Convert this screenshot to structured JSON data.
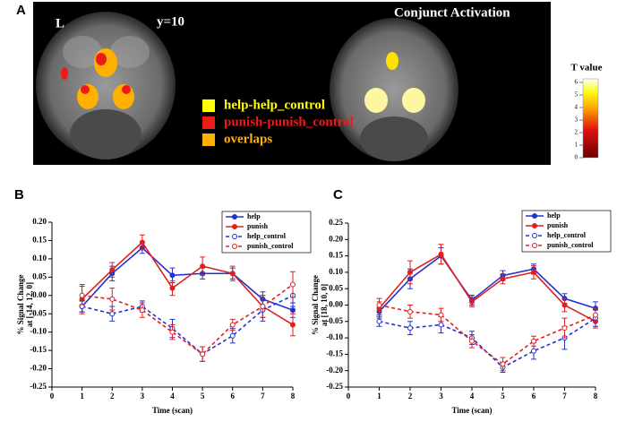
{
  "panel_a": {
    "label": "A",
    "hemisphere": "L",
    "slice": "y=10",
    "right_title": "Conjunct Activation",
    "legend": [
      {
        "label": "help-help_control",
        "color": "#ffff00"
      },
      {
        "label": "punish-punish_control",
        "color": "#ee1a1a"
      },
      {
        "label": "overlaps",
        "color": "#ffb000"
      }
    ],
    "colorbar": {
      "title": "T value",
      "ticks": [
        0,
        1,
        2,
        3,
        4,
        5,
        6
      ]
    }
  },
  "chart_data": [
    {
      "type": "line",
      "label": "B",
      "xlabel": "Time (scan)",
      "ylabel": [
        "% Signal Change",
        "at [-14, 12, 0]"
      ],
      "x": [
        1,
        2,
        3,
        4,
        5,
        6,
        7,
        8
      ],
      "xlim": [
        0,
        8
      ],
      "xticks": [
        0,
        1,
        2,
        3,
        4,
        5,
        6,
        7,
        8
      ],
      "ylim": [
        -0.25,
        0.2
      ],
      "yticks": [
        {
          "value": -0.25,
          "label": "-0.25"
        },
        {
          "value": -0.2,
          "label": "-0.20"
        },
        {
          "value": -0.15,
          "label": "-0.15"
        },
        {
          "value": -0.1,
          "label": "-0.10"
        },
        {
          "value": -0.05,
          "label": "-0.05"
        },
        {
          "value": 0,
          "label": "0.00"
        },
        {
          "value": 0.05,
          "label": "0.05"
        },
        {
          "value": 0.1,
          "label": "0.10"
        },
        {
          "value": 0.15,
          "label": "0.15"
        },
        {
          "value": 0.2,
          "label": "0.20"
        }
      ],
      "series": [
        {
          "name": "help",
          "color": "#2233cc",
          "style": "solid",
          "values": [
            -0.03,
            0.06,
            0.13,
            0.055,
            0.06,
            0.06,
            -0.01,
            -0.04
          ],
          "errors": [
            0.015,
            0.02,
            0.015,
            0.02,
            0.015,
            0.015,
            0.02,
            0.02
          ]
        },
        {
          "name": "punish",
          "color": "#e02020",
          "style": "solid",
          "values": [
            -0.01,
            0.07,
            0.145,
            0.02,
            0.08,
            0.06,
            -0.03,
            -0.08
          ],
          "errors": [
            0.04,
            0.02,
            0.02,
            0.02,
            0.025,
            0.02,
            0.03,
            0.03
          ]
        },
        {
          "name": "help_control",
          "color": "#2233cc",
          "style": "dashed",
          "values": [
            -0.03,
            -0.05,
            -0.03,
            -0.09,
            -0.16,
            -0.11,
            -0.04,
            0.0
          ],
          "errors": [
            0.015,
            0.02,
            0.015,
            0.025,
            0.02,
            0.02,
            0.03,
            0.03
          ]
        },
        {
          "name": "punish_control",
          "color": "#e02020",
          "style": "dashed",
          "values": [
            0.0,
            -0.01,
            -0.04,
            -0.1,
            -0.16,
            -0.08,
            -0.03,
            0.03
          ],
          "errors": [
            0.025,
            0.03,
            0.02,
            0.02,
            0.02,
            0.015,
            0.03,
            0.035
          ]
        }
      ]
    },
    {
      "type": "line",
      "label": "C",
      "xlabel": "Time (scan)",
      "ylabel": [
        "% Signal Change",
        "at [18, 10, 0]"
      ],
      "x": [
        1,
        2,
        3,
        4,
        5,
        6,
        7,
        8
      ],
      "xlim": [
        0,
        8
      ],
      "xticks": [
        0,
        1,
        2,
        3,
        4,
        5,
        6,
        7,
        8
      ],
      "ylim": [
        -0.25,
        0.25
      ],
      "yticks": [
        {
          "value": -0.25,
          "label": "-0.25"
        },
        {
          "value": -0.2,
          "label": "-0.20"
        },
        {
          "value": -0.15,
          "label": "-0.15"
        },
        {
          "value": -0.1,
          "label": "-0.10"
        },
        {
          "value": -0.05,
          "label": "-0.05"
        },
        {
          "value": 0,
          "label": "0.00"
        },
        {
          "value": 0.05,
          "label": "0.05"
        },
        {
          "value": 0.1,
          "label": "0.10"
        },
        {
          "value": 0.15,
          "label": "0.15"
        },
        {
          "value": 0.2,
          "label": "0.20"
        },
        {
          "value": 0.25,
          "label": "0.25"
        }
      ],
      "series": [
        {
          "name": "help",
          "color": "#2233cc",
          "style": "solid",
          "values": [
            -0.02,
            0.08,
            0.15,
            0.015,
            0.09,
            0.11,
            0.02,
            -0.01
          ],
          "errors": [
            0.02,
            0.03,
            0.025,
            0.015,
            0.015,
            0.015,
            0.015,
            0.02
          ]
        },
        {
          "name": "punish",
          "color": "#e02020",
          "style": "solid",
          "values": [
            -0.01,
            0.1,
            0.155,
            0.01,
            0.08,
            0.1,
            0.0,
            -0.05
          ],
          "errors": [
            0.02,
            0.035,
            0.03,
            0.015,
            0.015,
            0.02,
            0.02,
            0.02
          ]
        },
        {
          "name": "help_control",
          "color": "#2233cc",
          "style": "dashed",
          "values": [
            -0.05,
            -0.07,
            -0.06,
            -0.1,
            -0.19,
            -0.14,
            -0.1,
            -0.04
          ],
          "errors": [
            0.015,
            0.02,
            0.025,
            0.02,
            0.015,
            0.025,
            0.035,
            0.025
          ]
        },
        {
          "name": "punish_control",
          "color": "#e02020",
          "style": "dashed",
          "values": [
            0.0,
            -0.02,
            -0.03,
            -0.11,
            -0.18,
            -0.11,
            -0.07,
            -0.03
          ],
          "errors": [
            0.02,
            0.02,
            0.02,
            0.02,
            0.02,
            0.015,
            0.03,
            0.02
          ]
        }
      ]
    }
  ]
}
